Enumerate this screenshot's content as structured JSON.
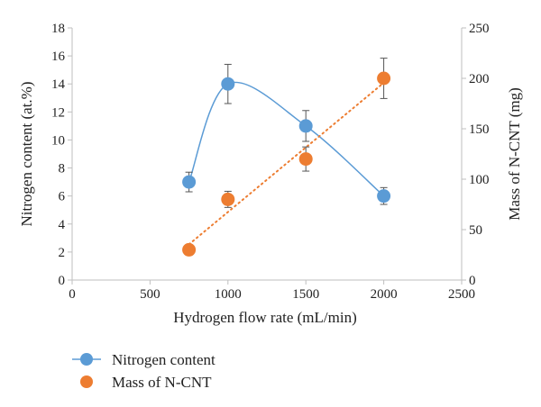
{
  "chart_data": {
    "type": "scatter",
    "title": "",
    "xlabel": "Hydrogen flow rate (mL/min)",
    "ylabel_left": "Nitrogen content (at.%)",
    "ylabel_right": "Mass of N-CNT (mg)",
    "xlim": [
      0,
      2500
    ],
    "ylim_left": [
      0,
      18
    ],
    "ylim_right": [
      0,
      250
    ],
    "x_ticks": [
      "0",
      "500",
      "1000",
      "1500",
      "2000",
      "2500"
    ],
    "y_left_ticks": [
      "0",
      "2",
      "4",
      "6",
      "8",
      "10",
      "12",
      "14",
      "16",
      "18"
    ],
    "y_right_ticks": [
      "0",
      "50",
      "100",
      "150",
      "200",
      "250"
    ],
    "grid": false,
    "legend_position": "bottom-left",
    "series": [
      {
        "name": "Nitrogen content",
        "axis": "left",
        "color": "#5B9BD5",
        "line": "smooth solid",
        "x": [
          750,
          1000,
          1500,
          2000
        ],
        "y": [
          7.0,
          14.0,
          11.0,
          6.0
        ],
        "error": [
          0.7,
          1.4,
          1.1,
          0.6
        ]
      },
      {
        "name": "Mass of N-CNT",
        "axis": "right",
        "color": "#ED7D31",
        "line": "dotted linear trend",
        "x": [
          750,
          1000,
          1500,
          2000
        ],
        "y": [
          30,
          80,
          120,
          200
        ],
        "error": [
          0,
          8,
          12,
          20
        ]
      }
    ]
  }
}
